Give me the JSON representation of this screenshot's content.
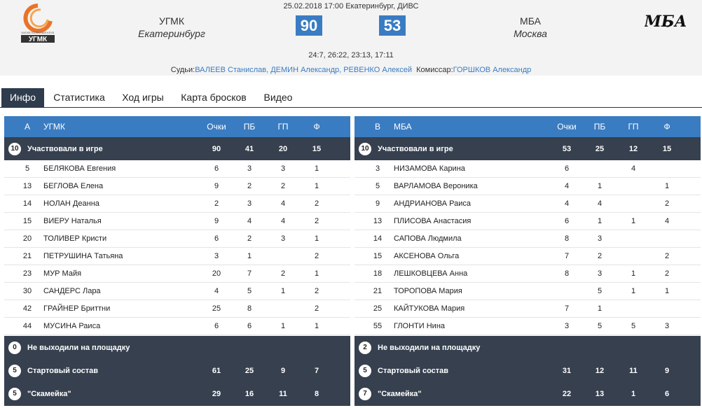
{
  "header": {
    "date_venue": "25.02.2018 17:00 Екатеринбург, ДИВС",
    "home": {
      "name": "УГМК",
      "city": "Екатеринбург",
      "score": "90",
      "logo_text": "УГМК",
      "logo_subtext": "БАСКЕТБОЛЬНЫЙ КЛУБ"
    },
    "away": {
      "name": "МБА",
      "city": "Москва",
      "score": "53",
      "logo_text": "МБА"
    },
    "quarters": "24:7, 26:22, 23:13, 17:11",
    "referees_label": "Судьи:",
    "referees": "ВАЛЕЕВ Станислав, ДЕМИН Александр, РЕВЕНКО Алексей",
    "commissioner_label": "Комиссар:",
    "commissioner": "ГОРШКОВ Александр"
  },
  "tabs": [
    "Инфо",
    "Статистика",
    "Ход игры",
    "Карта бросков",
    "Видео"
  ],
  "active_tab": "Инфо",
  "teams": [
    {
      "header": {
        "letter": "А",
        "team": "УГМК",
        "cols": [
          "Очки",
          "ПБ",
          "ГП",
          "Ф"
        ]
      },
      "played": {
        "count": "10",
        "label": "Участвовали в игре",
        "values": [
          "90",
          "41",
          "20",
          "15"
        ]
      },
      "players": [
        {
          "num": "5",
          "name": "БЕЛЯКОВА Евгения",
          "vals": [
            "6",
            "3",
            "3",
            "1"
          ]
        },
        {
          "num": "13",
          "name": "БЕГЛОВА Елена",
          "vals": [
            "9",
            "2",
            "2",
            "1"
          ]
        },
        {
          "num": "14",
          "name": "НОЛАН Деанна",
          "vals": [
            "2",
            "3",
            "4",
            "2"
          ]
        },
        {
          "num": "15",
          "name": "ВИЕРУ Наталья",
          "vals": [
            "9",
            "4",
            "4",
            "2"
          ]
        },
        {
          "num": "20",
          "name": "ТОЛИВЕР Кристи",
          "vals": [
            "6",
            "2",
            "3",
            "1"
          ]
        },
        {
          "num": "21",
          "name": "ПЕТРУШИНА Татьяна",
          "vals": [
            "3",
            "1",
            "",
            "2"
          ]
        },
        {
          "num": "23",
          "name": "МУР Майя",
          "vals": [
            "20",
            "7",
            "2",
            "1"
          ]
        },
        {
          "num": "30",
          "name": "САНДЕРС Лара",
          "vals": [
            "4",
            "5",
            "1",
            "2"
          ]
        },
        {
          "num": "42",
          "name": "ГРАЙНЕР Бриттни",
          "vals": [
            "25",
            "8",
            "",
            "2"
          ]
        },
        {
          "num": "44",
          "name": "МУСИНА Раиса",
          "vals": [
            "6",
            "6",
            "1",
            "1"
          ]
        }
      ],
      "dnp": {
        "count": "0",
        "label": "Не выходили на площадку"
      },
      "starters": {
        "count": "5",
        "label": "Стартовый состав",
        "values": [
          "61",
          "25",
          "9",
          "7"
        ]
      },
      "bench": {
        "count": "5",
        "label": "\"Скамейка\"",
        "values": [
          "29",
          "16",
          "11",
          "8"
        ]
      }
    },
    {
      "header": {
        "letter": "В",
        "team": "МБА",
        "cols": [
          "Очки",
          "ПБ",
          "ГП",
          "Ф"
        ]
      },
      "played": {
        "count": "10",
        "label": "Участвовали в игре",
        "values": [
          "53",
          "25",
          "12",
          "15"
        ]
      },
      "players": [
        {
          "num": "3",
          "name": "НИЗАМОВА Карина",
          "vals": [
            "6",
            "",
            "4",
            ""
          ]
        },
        {
          "num": "5",
          "name": "ВАРЛАМОВА Вероника",
          "vals": [
            "4",
            "1",
            "",
            "1"
          ]
        },
        {
          "num": "9",
          "name": "АНДРИАНОВА Раиса",
          "vals": [
            "4",
            "4",
            "",
            "2"
          ]
        },
        {
          "num": "13",
          "name": "ПЛИСОВА Анастасия",
          "vals": [
            "6",
            "1",
            "1",
            "4"
          ]
        },
        {
          "num": "14",
          "name": "САПОВА Людмила",
          "vals": [
            "8",
            "3",
            "",
            ""
          ]
        },
        {
          "num": "15",
          "name": "АКСЕНОВА Ольга",
          "vals": [
            "7",
            "2",
            "",
            "2"
          ]
        },
        {
          "num": "18",
          "name": "ЛЕШКОВЦЕВА Анна",
          "vals": [
            "8",
            "3",
            "1",
            "2"
          ]
        },
        {
          "num": "21",
          "name": "ТОРОПОВА Мария",
          "vals": [
            "",
            "5",
            "1",
            "1"
          ]
        },
        {
          "num": "25",
          "name": "КАЙТУКОВА Мария",
          "vals": [
            "7",
            "1",
            "",
            ""
          ]
        },
        {
          "num": "55",
          "name": "ГЛОНТИ Нина",
          "vals": [
            "3",
            "5",
            "5",
            "3"
          ]
        }
      ],
      "dnp": {
        "count": "2",
        "label": "Не выходили на площадку"
      },
      "starters": {
        "count": "5",
        "label": "Стартовый состав",
        "values": [
          "31",
          "12",
          "11",
          "9"
        ]
      },
      "bench": {
        "count": "7",
        "label": "\"Скамейка\"",
        "values": [
          "22",
          "13",
          "1",
          "6"
        ]
      }
    }
  ]
}
